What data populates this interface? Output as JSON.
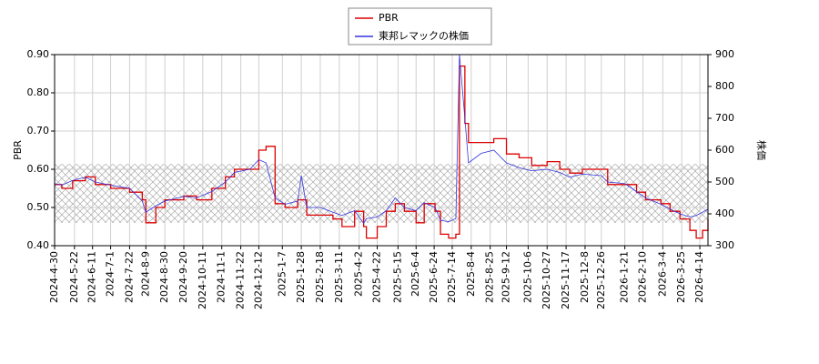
{
  "chart_data": {
    "type": "line",
    "x": [
      "2024-4-30",
      "2024-5-8",
      "2024-5-20",
      "2024-6-3",
      "2024-6-14",
      "2024-7-1",
      "2024-7-22",
      "2024-8-5",
      "2024-8-9",
      "2024-8-20",
      "2024-8-30",
      "2024-9-20",
      "2024-10-4",
      "2024-10-21",
      "2024-11-5",
      "2024-11-15",
      "2024-12-2",
      "2024-12-12",
      "2024-12-20",
      "2024-12-30",
      "2025-1-10",
      "2025-1-24",
      "2025-1-28",
      "2025-2-3",
      "2025-2-18",
      "2025-3-4",
      "2025-3-14",
      "2025-3-28",
      "2025-4-7",
      "2025-4-10",
      "2025-4-22",
      "2025-5-2",
      "2025-5-12",
      "2025-5-22",
      "2025-6-4",
      "2025-6-13",
      "2025-6-25",
      "2025-7-1",
      "2025-7-10",
      "2025-7-18",
      "2025-7-22",
      "2025-7-28",
      "2025-8-1",
      "2025-8-15",
      "2025-8-29",
      "2025-9-12",
      "2025-9-26",
      "2025-10-10",
      "2025-10-27",
      "2025-11-10",
      "2025-11-21",
      "2025-12-5",
      "2025-12-26",
      "2026-1-2",
      "2026-1-21",
      "2026-2-3",
      "2026-2-13",
      "2026-3-2",
      "2026-3-12",
      "2026-3-23",
      "2026-4-3",
      "2026-4-10",
      "2026-4-17",
      "2026-4-23"
    ],
    "series": [
      {
        "name": "PBR",
        "color": "#dd0000",
        "drawstyle": "steps-post",
        "values": [
          0.56,
          0.55,
          0.57,
          0.58,
          0.56,
          0.55,
          0.54,
          0.52,
          0.46,
          0.5,
          0.52,
          0.53,
          0.52,
          0.55,
          0.58,
          0.6,
          0.6,
          0.65,
          0.66,
          0.51,
          0.5,
          0.52,
          0.52,
          0.48,
          0.48,
          0.47,
          0.45,
          0.49,
          0.45,
          0.42,
          0.45,
          0.49,
          0.51,
          0.49,
          0.46,
          0.51,
          0.49,
          0.43,
          0.42,
          0.43,
          0.87,
          0.72,
          0.67,
          0.67,
          0.68,
          0.64,
          0.63,
          0.61,
          0.62,
          0.6,
          0.59,
          0.6,
          0.6,
          0.56,
          0.56,
          0.54,
          0.52,
          0.51,
          0.49,
          0.47,
          0.44,
          0.42,
          0.44,
          0.47
        ]
      },
      {
        "name": "東邦レマックの株価",
        "color": "#3333dd",
        "axis": "y2",
        "drawstyle": "default",
        "values": [
          495,
          490,
          505,
          515,
          500,
          490,
          480,
          440,
          405,
          425,
          440,
          455,
          450,
          470,
          500,
          530,
          540,
          570,
          560,
          450,
          430,
          440,
          520,
          420,
          420,
          405,
          395,
          410,
          370,
          385,
          390,
          410,
          450,
          420,
          410,
          435,
          420,
          380,
          375,
          385,
          900,
          700,
          560,
          590,
          600,
          560,
          545,
          535,
          540,
          530,
          515,
          525,
          520,
          500,
          495,
          470,
          450,
          430,
          415,
          400,
          390,
          395,
          405,
          415
        ]
      }
    ],
    "xlim": [
      "2024-4-30",
      "2026-4-23"
    ],
    "xticks": [
      "2024-4-30",
      "2024-5-22",
      "2024-6-11",
      "2024-7-1",
      "2024-7-22",
      "2024-8-9",
      "2024-8-30",
      "2024-9-20",
      "2024-10-11",
      "2024-11-1",
      "2024-11-22",
      "2024-12-12",
      "2025-1-7",
      "2025-1-28",
      "2025-2-18",
      "2025-3-11",
      "2025-4-2",
      "2025-4-22",
      "2025-5-15",
      "2025-6-4",
      "2025-6-24",
      "2025-7-14",
      "2025-8-4",
      "2025-8-25",
      "2025-9-12",
      "2025-10-6",
      "2025-10-27",
      "2025-11-17",
      "2025-12-8",
      "2025-12-26",
      "2026-1-21",
      "2026-2-10",
      "2026-3-4",
      "2026-3-25",
      "2026-4-14"
    ],
    "ylabel": "PBR",
    "y2label": "株価",
    "ylim": [
      0.4,
      0.9
    ],
    "yticks": [
      {
        "value": 0.4,
        "label": "0.40"
      },
      {
        "value": 0.5,
        "label": "0.50"
      },
      {
        "value": 0.6,
        "label": "0.60"
      },
      {
        "value": 0.7,
        "label": "0.70"
      },
      {
        "value": 0.8,
        "label": "0.80"
      },
      {
        "value": 0.9,
        "label": "0.90"
      }
    ],
    "y2lim": [
      300,
      900
    ],
    "y2ticks": [
      300,
      400,
      500,
      600,
      700,
      800,
      900
    ],
    "band": [
      0.46,
      0.614
    ],
    "grid": true,
    "legend": "upper center"
  }
}
